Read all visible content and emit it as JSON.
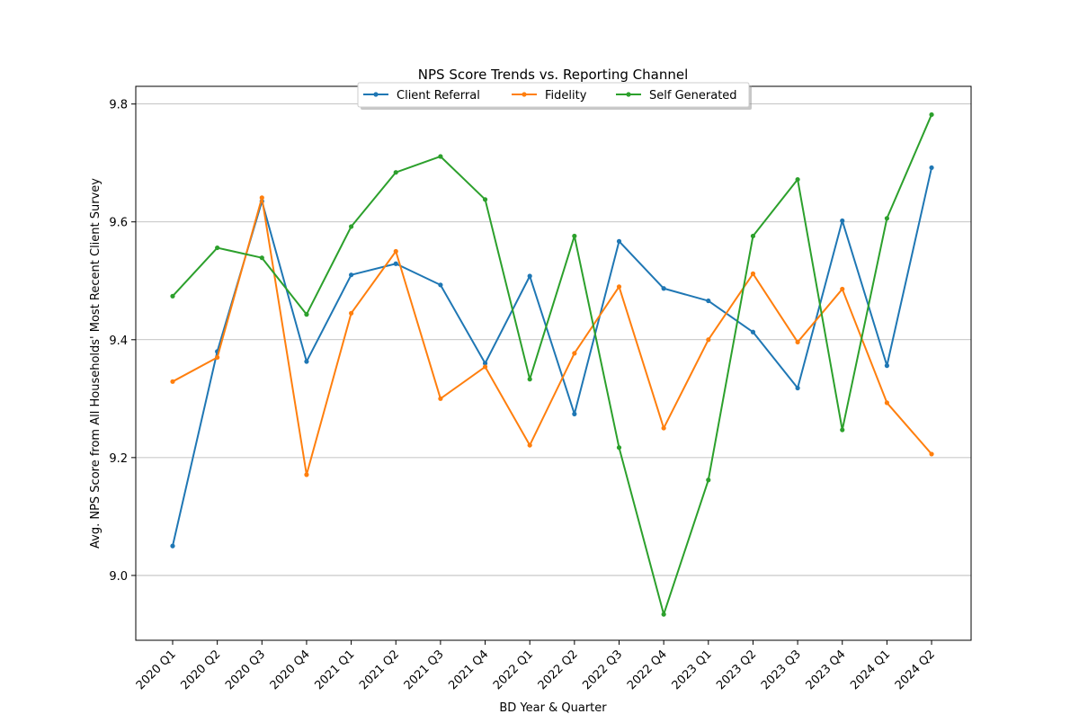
{
  "chart_data": {
    "type": "line",
    "title": "NPS Score Trends vs. Reporting Channel",
    "xlabel": "BD Year & Quarter",
    "ylabel": "Avg. NPS Score from All Households' Most Recent Client Survey",
    "ylim": [
      8.89,
      9.83
    ],
    "yticks": [
      "9.0",
      "9.2",
      "9.4",
      "9.6",
      "9.8"
    ],
    "grid": "horizontal",
    "legend_position": "top-center",
    "categories": [
      "2020 Q1",
      "2020 Q2",
      "2020 Q3",
      "2020 Q4",
      "2021 Q1",
      "2021 Q2",
      "2021 Q3",
      "2021 Q4",
      "2022 Q1",
      "2022 Q2",
      "2022 Q3",
      "2022 Q4",
      "2023 Q1",
      "2023 Q2",
      "2023 Q3",
      "2023 Q4",
      "2024 Q1",
      "2024 Q2"
    ],
    "series": [
      {
        "name": "Client Referral",
        "color": "#1f77b4",
        "values": [
          9.05,
          9.38,
          9.635,
          9.363,
          9.51,
          9.529,
          9.493,
          9.36,
          9.508,
          9.274,
          9.567,
          9.487,
          9.466,
          9.413,
          9.318,
          9.602,
          9.356,
          9.692
        ]
      },
      {
        "name": "Fidelity",
        "color": "#ff7f0e",
        "values": [
          9.329,
          9.37,
          9.641,
          9.171,
          9.445,
          9.55,
          9.3,
          9.354,
          9.221,
          9.377,
          9.49,
          9.25,
          9.4,
          9.512,
          9.396,
          9.486,
          9.293,
          9.206
        ]
      },
      {
        "name": "Self Generated",
        "color": "#2ca02c",
        "values": [
          9.474,
          9.556,
          9.539,
          9.443,
          9.592,
          9.684,
          9.711,
          9.638,
          9.333,
          9.576,
          9.217,
          8.934,
          9.162,
          9.576,
          9.672,
          9.247,
          9.606,
          9.782
        ]
      }
    ]
  }
}
